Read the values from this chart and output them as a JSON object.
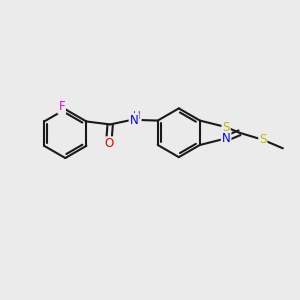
{
  "background_color": "#ebebeb",
  "bond_color": "#1a1a1a",
  "atom_colors": {
    "F": "#ee00ee",
    "O": "#ee0000",
    "N": "#0000ee",
    "S": "#bbbb00",
    "C": "#1a1a1a",
    "H": "#4444bb"
  },
  "figsize": [
    3.0,
    3.0
  ],
  "dpi": 100,
  "xlim": [
    0,
    10
  ],
  "ylim": [
    0,
    10
  ]
}
